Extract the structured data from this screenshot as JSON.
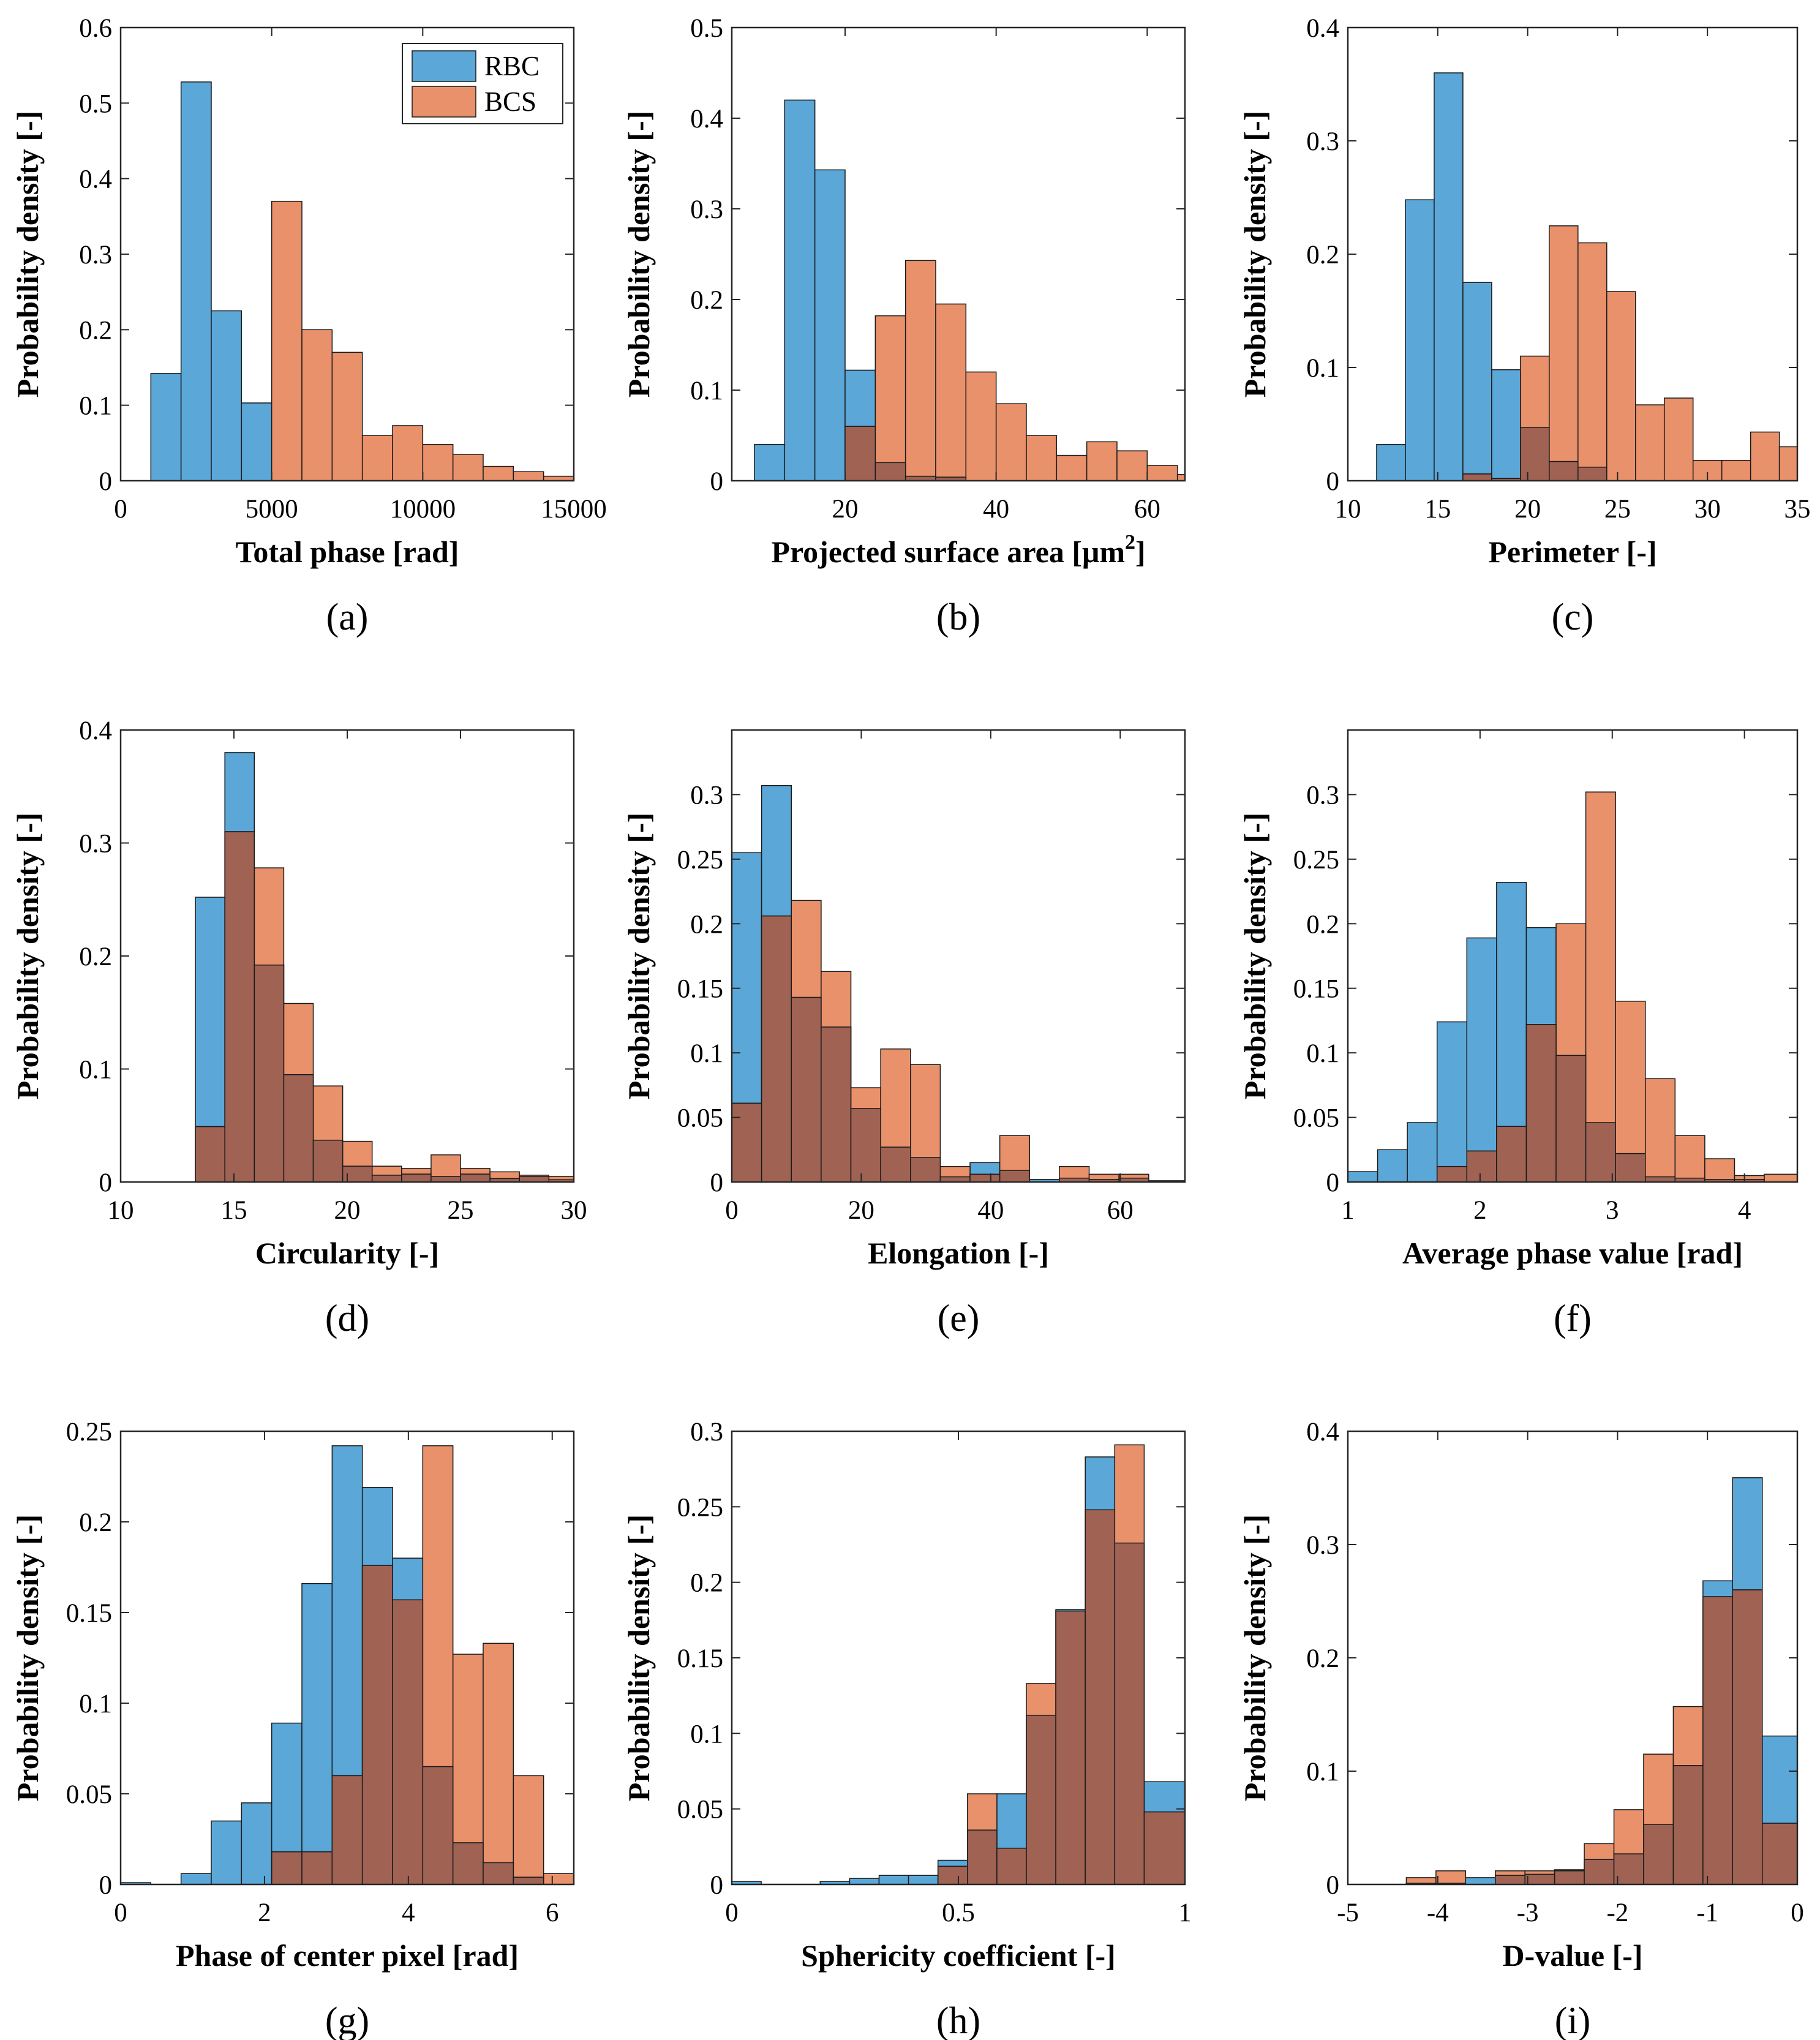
{
  "figure_labels": [
    "(a)",
    "(b)",
    "(c)",
    "(d)",
    "(e)",
    "(f)",
    "(g)",
    "(h)",
    "(i)"
  ],
  "legend": {
    "rbc": "RBC",
    "bcs": "BCS"
  },
  "colors": {
    "rbc": "#5aa7d8",
    "bcs": "#e8916b",
    "overlap": "#9f6253",
    "edge": "#1a1a1a"
  },
  "chart_data": [
    {
      "type": "bar",
      "caption": "(a)",
      "xlabel": "Total phase [rad]",
      "ylabel": "Probability density [-]",
      "xlim": [
        0,
        15000
      ],
      "ylim": [
        0,
        0.6
      ],
      "xticks": [
        0,
        5000,
        10000,
        15000
      ],
      "xtick_labels": [
        "0",
        "5000",
        "10000",
        "15000"
      ],
      "yticks": [
        0,
        0.1,
        0.2,
        0.3,
        0.4,
        0.5,
        0.6
      ],
      "ytick_labels": [
        "0",
        "0.1",
        "0.2",
        "0.3",
        "0.4",
        "0.5",
        "0.6"
      ],
      "legend": true,
      "series": [
        {
          "name": "RBC",
          "edges": [
            1000,
            2000,
            3000,
            4000,
            5000
          ],
          "values": [
            0.142,
            0.528,
            0.225,
            0.103
          ]
        },
        {
          "name": "BCS",
          "edges": [
            5000,
            6000,
            7000,
            8000,
            9000,
            10000,
            11000,
            12000,
            13000,
            14000,
            15000
          ],
          "values": [
            0.37,
            0.2,
            0.17,
            0.06,
            0.073,
            0.048,
            0.035,
            0.019,
            0.012,
            0.006
          ]
        }
      ]
    },
    {
      "type": "bar",
      "caption": "(b)",
      "xlabel": "Projected surface area [μm",
      "xlabel_sup": "2",
      "xlabel_end": "]",
      "ylabel": "Probability density [-]",
      "xlim": [
        5,
        65
      ],
      "ylim": [
        0,
        0.5
      ],
      "xticks": [
        20,
        40,
        60
      ],
      "xtick_labels": [
        "20",
        "40",
        "60"
      ],
      "yticks": [
        0,
        0.1,
        0.2,
        0.3,
        0.4,
        0.5
      ],
      "ytick_labels": [
        "0",
        "0.1",
        "0.2",
        "0.3",
        "0.4",
        "0.5"
      ],
      "series": [
        {
          "name": "RBC",
          "edges": [
            8,
            12,
            16,
            20,
            24,
            28,
            32,
            36
          ],
          "values": [
            0.04,
            0.42,
            0.343,
            0.122,
            0.02,
            0.005,
            0.004
          ]
        },
        {
          "name": "BCS",
          "edges": [
            20,
            24,
            28,
            32,
            36,
            40,
            44,
            48,
            52,
            56,
            60,
            64,
            65
          ],
          "values": [
            0.06,
            0.182,
            0.243,
            0.195,
            0.12,
            0.085,
            0.05,
            0.028,
            0.043,
            0.033,
            0.017,
            0.007
          ]
        }
      ]
    },
    {
      "type": "bar",
      "caption": "(c)",
      "xlabel": "Perimeter [-]",
      "ylabel": "Probability density [-]",
      "xlim": [
        10,
        35
      ],
      "ylim": [
        0,
        0.4
      ],
      "xticks": [
        10,
        15,
        20,
        25,
        30,
        35
      ],
      "xtick_labels": [
        "10",
        "15",
        "20",
        "25",
        "30",
        "35"
      ],
      "yticks": [
        0,
        0.1,
        0.2,
        0.3,
        0.4
      ],
      "ytick_labels": [
        "0",
        "0.1",
        "0.2",
        "0.3",
        "0.4"
      ],
      "series": [
        {
          "name": "RBC",
          "edges": [
            11.6,
            13.2,
            14.8,
            16.4,
            18,
            19.6,
            21.2,
            22.8,
            24.4
          ],
          "values": [
            0.032,
            0.248,
            0.36,
            0.175,
            0.098,
            0.047,
            0.017,
            0.012
          ]
        },
        {
          "name": "BCS",
          "edges": [
            16.4,
            18,
            19.6,
            21.2,
            22.8,
            24.4,
            26,
            27.6,
            29.2,
            30.8,
            32.4,
            34,
            35
          ],
          "values": [
            0.006,
            0.002,
            0.11,
            0.225,
            0.21,
            0.167,
            0.067,
            0.073,
            0.018,
            0.018,
            0.043,
            0.03
          ]
        }
      ]
    },
    {
      "type": "bar",
      "caption": "(d)",
      "xlabel": "Circularity [-]",
      "ylabel": "Probability density [-]",
      "xlim": [
        10,
        30
      ],
      "ylim": [
        0,
        0.4
      ],
      "xticks": [
        10,
        15,
        20,
        25,
        30
      ],
      "xtick_labels": [
        "10",
        "15",
        "20",
        "25",
        "30"
      ],
      "yticks": [
        0,
        0.1,
        0.2,
        0.3,
        0.4
      ],
      "ytick_labels": [
        "0",
        "0.1",
        "0.2",
        "0.3",
        "0.4"
      ],
      "series": [
        {
          "name": "RBC",
          "edges": [
            13.3,
            14.6,
            15.9,
            17.2,
            18.5,
            19.8,
            21.1,
            22.4,
            23.7,
            25,
            26.3,
            27.6,
            28.9,
            30
          ],
          "values": [
            0.252,
            0.38,
            0.192,
            0.095,
            0.037,
            0.014,
            0.006,
            0.007,
            0.005,
            0.007,
            0.003,
            0.005,
            0.002
          ]
        },
        {
          "name": "BCS",
          "edges": [
            13.3,
            14.6,
            15.9,
            17.2,
            18.5,
            19.8,
            21.1,
            22.4,
            23.7,
            25,
            26.3,
            27.6,
            28.9,
            30
          ],
          "values": [
            0.049,
            0.31,
            0.278,
            0.158,
            0.085,
            0.036,
            0.014,
            0.012,
            0.024,
            0.012,
            0.009,
            0.006,
            0.005
          ]
        }
      ]
    },
    {
      "type": "bar",
      "caption": "(e)",
      "xlabel": "Elongation [-]",
      "ylabel": "Probability density [-]",
      "xlim": [
        0,
        70
      ],
      "ylim": [
        0,
        0.35
      ],
      "xticks": [
        0,
        20,
        40,
        60
      ],
      "xtick_labels": [
        "0",
        "20",
        "40",
        "60"
      ],
      "yticks": [
        0,
        0.05,
        0.1,
        0.15,
        0.2,
        0.25,
        0.3
      ],
      "ytick_labels": [
        "0",
        "0.05",
        "0.1",
        "0.15",
        "0.2",
        "0.25",
        "0.3"
      ],
      "series": [
        {
          "name": "RBC",
          "edges": [
            0,
            4.6,
            9.2,
            13.8,
            18.4,
            23,
            27.6,
            32.2,
            36.8,
            41.4,
            46,
            50.6,
            55.2,
            59.8,
            64.4,
            70
          ],
          "values": [
            0.255,
            0.307,
            0.143,
            0.12,
            0.057,
            0.027,
            0.019,
            0.004,
            0.015,
            0.009,
            0.002,
            0.003,
            0.002,
            0.003,
            0.001
          ]
        },
        {
          "name": "BCS",
          "edges": [
            0,
            4.6,
            9.2,
            13.8,
            18.4,
            23,
            27.6,
            32.2,
            36.8,
            41.4,
            46,
            50.6,
            55.2,
            59.8,
            64.4,
            70
          ],
          "values": [
            0.061,
            0.206,
            0.218,
            0.163,
            0.073,
            0.103,
            0.091,
            0.012,
            0.006,
            0.036,
            0,
            0.012,
            0.006,
            0.006,
            0
          ]
        }
      ]
    },
    {
      "type": "bar",
      "caption": "(f)",
      "xlabel": "Average phase value [rad]",
      "ylabel": "Probability density [-]",
      "xlim": [
        1,
        4.4
      ],
      "ylim": [
        0,
        0.35
      ],
      "xticks": [
        1,
        2,
        3,
        4
      ],
      "xtick_labels": [
        "1",
        "2",
        "3",
        "4"
      ],
      "yticks": [
        0,
        0.05,
        0.1,
        0.15,
        0.2,
        0.25,
        0.3
      ],
      "ytick_labels": [
        "0",
        "0.05",
        "0.1",
        "0.15",
        "0.2",
        "0.25",
        "0.3"
      ],
      "series": [
        {
          "name": "RBC",
          "edges": [
            1,
            1.225,
            1.45,
            1.675,
            1.9,
            2.125,
            2.35,
            2.575,
            2.8,
            3.025,
            3.25,
            3.475,
            3.7,
            3.925,
            4.15,
            4.4
          ],
          "values": [
            0.008,
            0.025,
            0.046,
            0.124,
            0.189,
            0.232,
            0.197,
            0.098,
            0.046,
            0.022,
            0.004,
            0.003,
            0.002,
            0.002,
            0
          ]
        },
        {
          "name": "BCS",
          "edges": [
            1,
            1.225,
            1.45,
            1.675,
            1.9,
            2.125,
            2.35,
            2.575,
            2.8,
            3.025,
            3.25,
            3.475,
            3.7,
            3.925,
            4.15,
            4.4
          ],
          "values": [
            0,
            0,
            0,
            0.012,
            0.024,
            0.043,
            0.122,
            0.2,
            0.302,
            0.14,
            0.08,
            0.036,
            0.018,
            0.005,
            0.006
          ]
        }
      ]
    },
    {
      "type": "bar",
      "caption": "(g)",
      "xlabel": "Phase of center pixel [rad]",
      "ylabel": "Probability density [-]",
      "xlim": [
        0,
        6.3
      ],
      "ylim": [
        0,
        0.25
      ],
      "xticks": [
        0,
        2,
        4,
        6
      ],
      "xtick_labels": [
        "0",
        "2",
        "4",
        "6"
      ],
      "yticks": [
        0,
        0.05,
        0.1,
        0.15,
        0.2,
        0.25
      ],
      "ytick_labels": [
        "0",
        "0.05",
        "0.1",
        "0.15",
        "0.2",
        "0.25"
      ],
      "series": [
        {
          "name": "RBC",
          "edges": [
            0,
            0.42,
            0.84,
            1.26,
            1.68,
            2.1,
            2.52,
            2.94,
            3.36,
            3.78,
            4.2,
            4.62,
            5.04,
            5.46,
            5.88,
            6.3
          ],
          "values": [
            0.001,
            0,
            0.006,
            0.035,
            0.045,
            0.089,
            0.166,
            0.242,
            0.219,
            0.18,
            0.065,
            0.023,
            0.012,
            0.004,
            0
          ]
        },
        {
          "name": "BCS",
          "edges": [
            0,
            0.42,
            0.84,
            1.26,
            1.68,
            2.1,
            2.52,
            2.94,
            3.36,
            3.78,
            4.2,
            4.62,
            5.04,
            5.46,
            5.88,
            6.3
          ],
          "values": [
            0,
            0,
            0,
            0,
            0,
            0.018,
            0.018,
            0.06,
            0.176,
            0.157,
            0.242,
            0.127,
            0.133,
            0.06,
            0.006
          ]
        }
      ]
    },
    {
      "type": "bar",
      "caption": "(h)",
      "xlabel": "Sphericity coefficient [-]",
      "ylabel": "Probability density [-]",
      "xlim": [
        0,
        1
      ],
      "ylim": [
        0,
        0.3
      ],
      "xticks": [
        0,
        0.5,
        1
      ],
      "xtick_labels": [
        "0",
        "0.5",
        "1"
      ],
      "yticks": [
        0,
        0.05,
        0.1,
        0.15,
        0.2,
        0.25,
        0.3
      ],
      "ytick_labels": [
        "0",
        "0.05",
        "0.1",
        "0.15",
        "0.2",
        "0.25",
        "0.3"
      ],
      "series": [
        {
          "name": "RBC",
          "edges": [
            0,
            0.065,
            0.13,
            0.195,
            0.26,
            0.325,
            0.39,
            0.455,
            0.52,
            0.585,
            0.65,
            0.715,
            0.78,
            0.845,
            0.91,
            1
          ],
          "values": [
            0.002,
            0,
            0,
            0.002,
            0.004,
            0.006,
            0.006,
            0.016,
            0.036,
            0.06,
            0.112,
            0.182,
            0.283,
            0.226,
            0.068
          ]
        },
        {
          "name": "BCS",
          "edges": [
            0,
            0.065,
            0.13,
            0.195,
            0.26,
            0.325,
            0.39,
            0.455,
            0.52,
            0.585,
            0.65,
            0.715,
            0.78,
            0.845,
            0.91,
            1
          ],
          "values": [
            0,
            0,
            0,
            0,
            0,
            0,
            0,
            0.012,
            0.06,
            0.024,
            0.133,
            0.181,
            0.248,
            0.291,
            0.048
          ]
        }
      ]
    },
    {
      "type": "bar",
      "caption": "(i)",
      "xlabel": "D-value [-]",
      "ylabel": "Probability density [-]",
      "xlim": [
        -5,
        0
      ],
      "ylim": [
        0,
        0.4
      ],
      "xticks": [
        -5,
        -4,
        -3,
        -2,
        -1,
        0
      ],
      "xtick_labels": [
        "-5",
        "-4",
        "-3",
        "-2",
        "-1",
        "0"
      ],
      "yticks": [
        0,
        0.1,
        0.2,
        0.3,
        0.4
      ],
      "ytick_labels": [
        "0",
        "0.1",
        "0.2",
        "0.3",
        "0.4"
      ],
      "series": [
        {
          "name": "RBC",
          "edges": [
            -4.35,
            -4.02,
            -3.69,
            -3.36,
            -3.03,
            -2.7,
            -2.37,
            -2.04,
            -1.71,
            -1.38,
            -1.05,
            -0.72,
            -0.39,
            0
          ],
          "values": [
            0.001,
            0.001,
            0.006,
            0.008,
            0.009,
            0.013,
            0.022,
            0.027,
            0.053,
            0.105,
            0.268,
            0.359,
            0.131
          ]
        },
        {
          "name": "BCS",
          "edges": [
            -4.35,
            -4.02,
            -3.69,
            -3.36,
            -3.03,
            -2.7,
            -2.37,
            -2.04,
            -1.71,
            -1.38,
            -1.05,
            -0.72,
            -0.39,
            0
          ],
          "values": [
            0.006,
            0.012,
            0,
            0.012,
            0.012,
            0.012,
            0.036,
            0.066,
            0.115,
            0.157,
            0.254,
            0.26,
            0.054
          ]
        }
      ]
    }
  ]
}
